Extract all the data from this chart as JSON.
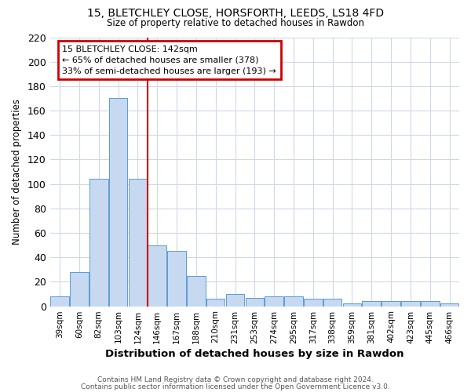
{
  "title_line1": "15, BLETCHLEY CLOSE, HORSFORTH, LEEDS, LS18 4FD",
  "title_line2": "Size of property relative to detached houses in Rawdon",
  "xlabel": "Distribution of detached houses by size in Rawdon",
  "ylabel": "Number of detached properties",
  "categories": [
    "39sqm",
    "60sqm",
    "82sqm",
    "103sqm",
    "124sqm",
    "146sqm",
    "167sqm",
    "188sqm",
    "210sqm",
    "231sqm",
    "253sqm",
    "274sqm",
    "295sqm",
    "317sqm",
    "338sqm",
    "359sqm",
    "381sqm",
    "402sqm",
    "423sqm",
    "445sqm",
    "466sqm"
  ],
  "values": [
    8,
    28,
    104,
    170,
    104,
    50,
    45,
    25,
    6,
    10,
    7,
    8,
    8,
    6,
    6,
    2,
    4,
    4,
    4,
    4,
    2
  ],
  "bar_color": "#c6d9f0",
  "bar_edge_color": "#5b9bd5",
  "vline_color": "#cc0000",
  "annotation_text": "15 BLETCHLEY CLOSE: 142sqm\n← 65% of detached houses are smaller (378)\n33% of semi-detached houses are larger (193) →",
  "annotation_box_color": "#cc0000",
  "ylim": [
    0,
    220
  ],
  "yticks": [
    0,
    20,
    40,
    60,
    80,
    100,
    120,
    140,
    160,
    180,
    200,
    220
  ],
  "footer_line1": "Contains HM Land Registry data © Crown copyright and database right 2024.",
  "footer_line2": "Contains public sector information licensed under the Open Government Licence v3.0.",
  "bg_color": "#ffffff",
  "grid_color": "#d0d8e8"
}
